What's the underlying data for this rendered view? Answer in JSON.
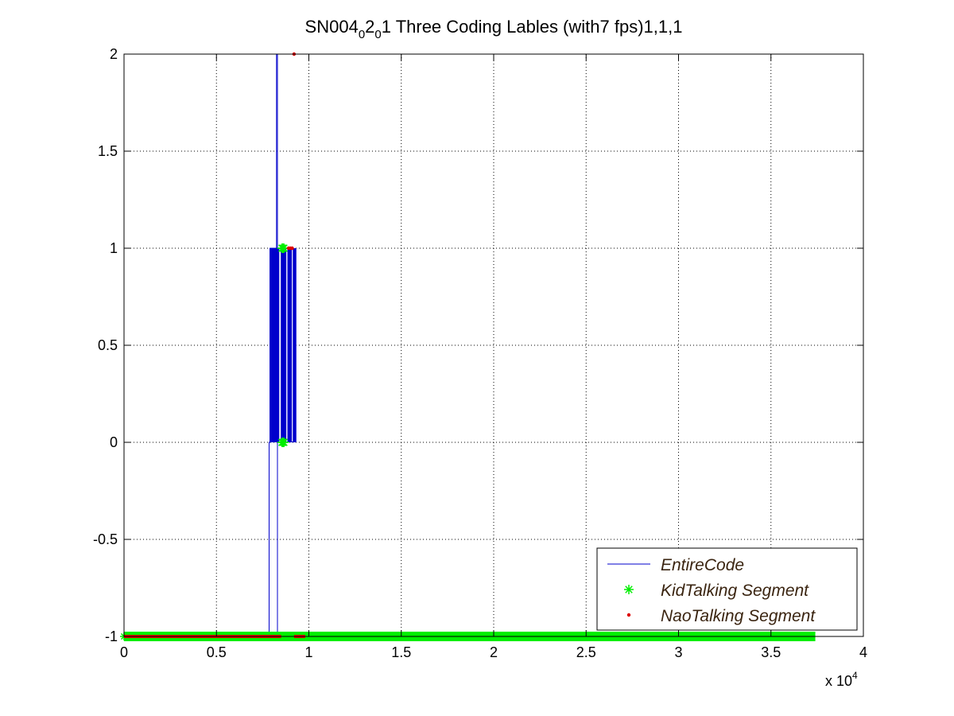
{
  "chart_data": {
    "type": "line",
    "title": {
      "prefix": "SN004",
      "sub1": "0",
      "mid": "2",
      "sub2": "0",
      "suffix": "1 Three Coding Lables (with7 fps)1,1,1"
    },
    "xlabel": "",
    "ylabel": "",
    "xlim": [
      0,
      40000
    ],
    "ylim": [
      -1,
      2
    ],
    "x_ticks": [
      0,
      5000,
      10000,
      15000,
      20000,
      25000,
      30000,
      35000,
      40000
    ],
    "x_tick_labels": [
      "0",
      "0.5",
      "1",
      "1.5",
      "2",
      "2.5",
      "3",
      "3.5",
      "4"
    ],
    "x_multiplier": {
      "base": "x 10",
      "exponent": "4"
    },
    "y_ticks": [
      -1,
      -0.5,
      0,
      0.5,
      1,
      1.5,
      2
    ],
    "y_tick_labels": [
      "-1",
      "-0.5",
      "0",
      "0.5",
      "1",
      "1.5",
      "2"
    ],
    "grid": true,
    "legend_position": "bottom-right",
    "series": [
      {
        "name": "EntireCode",
        "color": "#0000cc",
        "marker": "line",
        "x": [
          0,
          7850,
          7850,
          7900,
          7900,
          8250,
          8250,
          8300,
          8300,
          37400
        ],
        "y": [
          -1,
          -1,
          0,
          0,
          1,
          1,
          2,
          2,
          -1,
          -1
        ],
        "block": {
          "x_start": 7900,
          "x_end": 9300,
          "y_low": 0,
          "y_high": 1
        }
      },
      {
        "name": "KidTalking Segment",
        "color": "#00ee00",
        "marker": "asterisk",
        "x": [
          8550,
          8600,
          8650,
          8550,
          8600,
          8650
        ],
        "y": [
          1,
          1,
          1,
          0,
          0,
          0
        ],
        "baseline": {
          "x_start": 0,
          "x_end": 37400,
          "y": -1
        }
      },
      {
        "name": "NaoTalking Segment",
        "color": "#dd0000",
        "marker": "dot",
        "x": [
          9200,
          8900,
          9000,
          9100
        ],
        "y": [
          2,
          1,
          1,
          1
        ],
        "baseline": {
          "x_start": 0,
          "x_end": 9800,
          "y": -1
        }
      }
    ]
  }
}
